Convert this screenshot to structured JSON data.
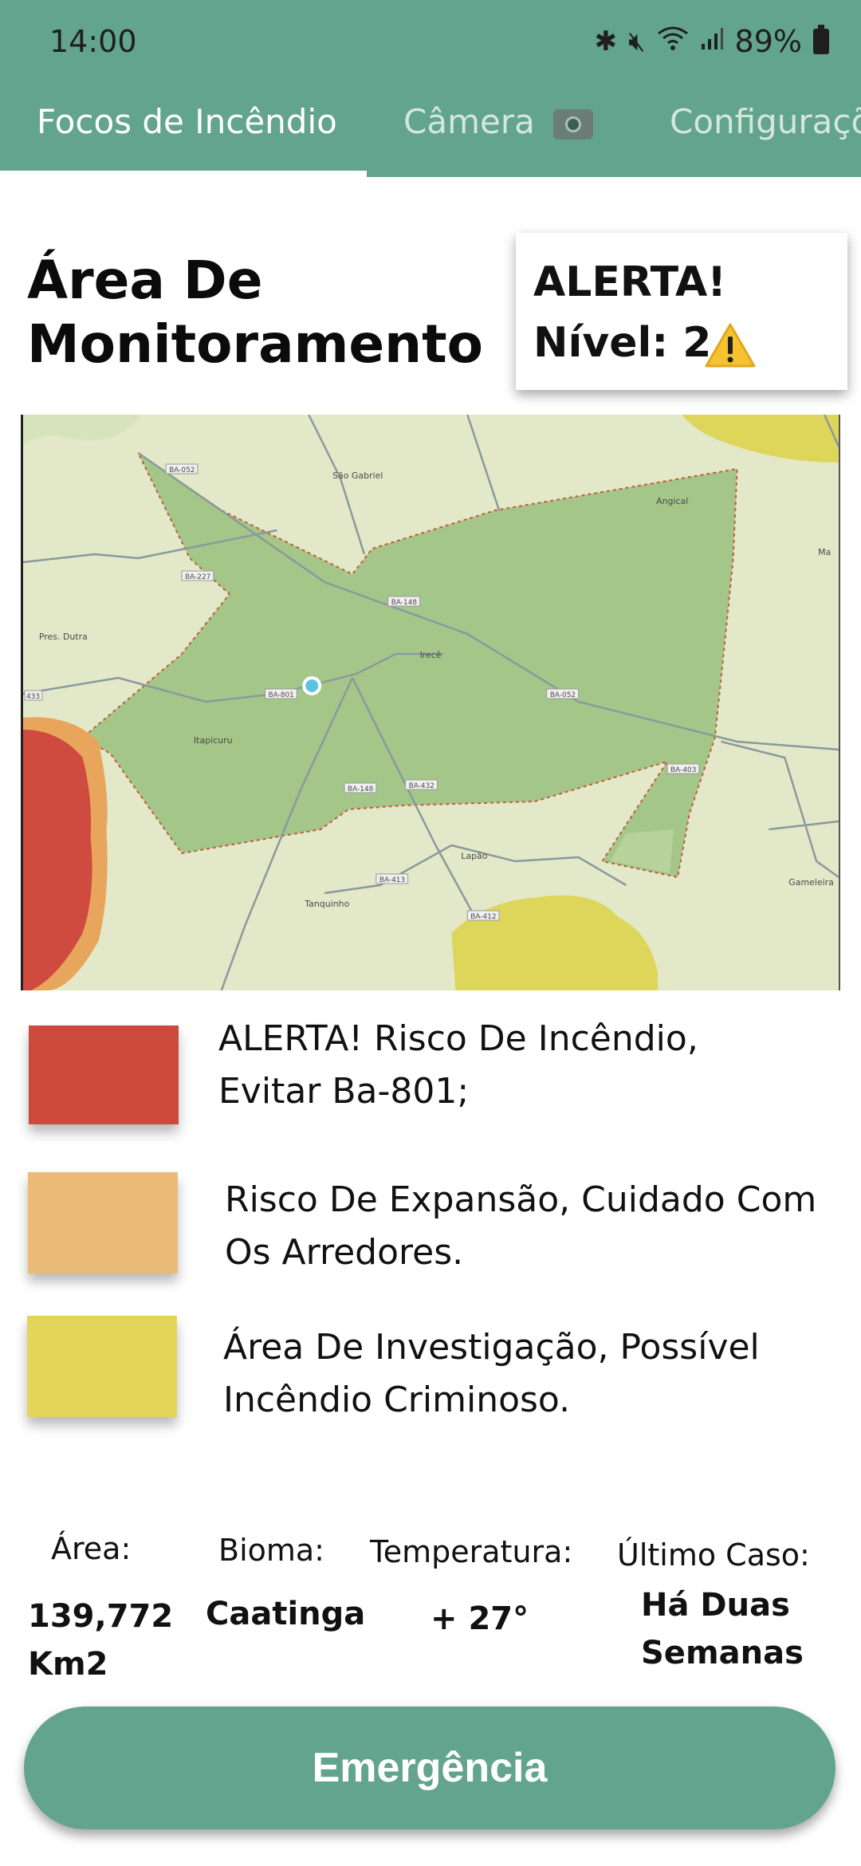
{
  "status_bar": {
    "time": "14:00",
    "battery": "89%",
    "icons": [
      "bluetooth-icon",
      "mute-icon",
      "wifi-icon",
      "signal-icon",
      "battery-icon"
    ]
  },
  "tabs": [
    {
      "label": "Focos de Incêndio",
      "active": true
    },
    {
      "label": "Câmera",
      "icon": "camera-icon",
      "active": false
    },
    {
      "label": "Configuraçõ",
      "active": false
    }
  ],
  "page_title": "Área De Monitoramento",
  "alert_card": {
    "title": "ALERTA!",
    "level": "Nível: 2",
    "icon": "warning-icon"
  },
  "map": {
    "place_labels": [
      "São Gabriel",
      "Angical",
      "Pres. Dutra",
      "Irecê",
      "Itapicuru",
      "Lapão",
      "Tanquinho",
      "Gameleira",
      "Ma"
    ],
    "road_labels": [
      "BA-052",
      "BA-227",
      "BA-148",
      "BA-801",
      "BA-052",
      "BA-148",
      "BA-432",
      "BA-413",
      "BA-412",
      "BA-432",
      "BA-403",
      "433"
    ],
    "colors": {
      "base": "#e2e7c7",
      "area": "#a3c587",
      "red": "#cf4b40",
      "orange": "#e8a65c",
      "yellow": "#e0d45a"
    }
  },
  "legend": [
    {
      "color": "#cc4a3c",
      "text_line1": "ALERTA! Risco De Incêndio,",
      "text_line2": "Evitar Ba-801;"
    },
    {
      "color": "#eabb77",
      "text_line1": "Risco De Expansão, Cuidado Com",
      "text_line2": "Os Arredores."
    },
    {
      "color": "#e2d55a",
      "text_line1": "Área De Investigação, Possível",
      "text_line2": "Incêndio Criminoso."
    }
  ],
  "stats": {
    "area": {
      "label": "Área:",
      "value_line1": "139,772",
      "value_line2": "Km2"
    },
    "bioma": {
      "label": "Bioma:",
      "value": "Caatinga"
    },
    "temperatura": {
      "label": "Temperatura:",
      "value": "+ 27°"
    },
    "ultimo_caso": {
      "label": "Último Caso:",
      "value_line1": "Há Duas",
      "value_line2": "Semanas"
    }
  },
  "emergency_button": "Emergência",
  "theme": {
    "primary": "#62a48e"
  }
}
